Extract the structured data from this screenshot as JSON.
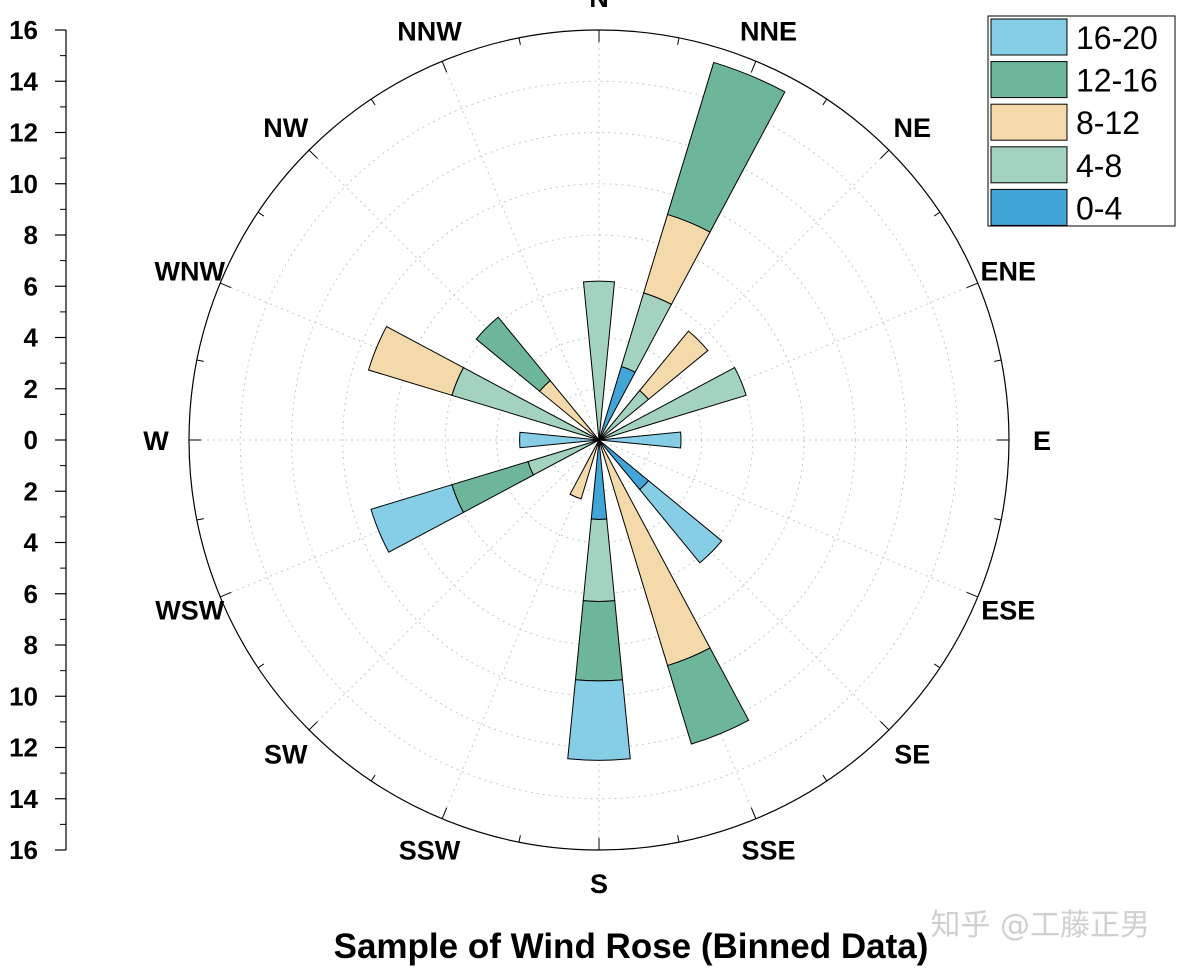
{
  "chart_data": {
    "type": "wind-rose",
    "title": "Sample of Wind Rose (Binned Data)",
    "radial_range": [
      0,
      16
    ],
    "radial_axis_ticks": [
      "16",
      "14",
      "12",
      "10",
      "8",
      "6",
      "4",
      "2",
      "0",
      "2",
      "4",
      "6",
      "8",
      "10",
      "12",
      "14",
      "16"
    ],
    "directions": [
      "N",
      "NNE",
      "NE",
      "ENE",
      "E",
      "ESE",
      "SE",
      "SSE",
      "S",
      "SSW",
      "SW",
      "WSW",
      "W",
      "WNW",
      "NW",
      "NNW"
    ],
    "bins": [
      "0-4",
      "4-8",
      "8-12",
      "12-16",
      "16-20"
    ],
    "legend_order": [
      "16-20",
      "12-16",
      "8-12",
      "4-8",
      "0-4"
    ],
    "legend_position": "top-right",
    "colors": {
      "0-4": "#42a5d7",
      "4-8": "#a3d3bf",
      "8-12": "#f4d9ab",
      "12-16": "#6db69a",
      "16-20": "#86cde6"
    },
    "grid": true,
    "cumulative_values": {
      "N": [
        0,
        6.2,
        6.2,
        6.2,
        6.2
      ],
      "NNE": [
        3.0,
        6.0,
        9.2,
        15.4,
        15.4
      ],
      "NE": [
        0,
        2.5,
        5.5,
        5.5,
        5.5
      ],
      "ENE": [
        0,
        6.0,
        6.0,
        6.0,
        6.0
      ],
      "E": [
        0,
        0,
        0,
        0,
        3.2
      ],
      "ESE": [
        0,
        0,
        0,
        0,
        0
      ],
      "SE": [
        2.5,
        2.5,
        2.5,
        2.5,
        6.2
      ],
      "SSE": [
        0,
        0,
        9.2,
        12.4,
        12.4
      ],
      "S": [
        3.1,
        6.3,
        6.3,
        9.4,
        12.5
      ],
      "SSW": [
        0,
        0,
        2.4,
        2.4,
        2.4
      ],
      "SW": [
        0,
        0,
        0,
        0,
        0
      ],
      "WSW": [
        0,
        2.9,
        2.9,
        6.0,
        9.3
      ],
      "W": [
        0,
        0,
        0,
        0,
        3.1
      ],
      "WNW": [
        0,
        6.0,
        9.4,
        9.4,
        9.4
      ],
      "NW": [
        0,
        0,
        3.0,
        6.2,
        6.2
      ],
      "NNW": [
        0,
        0,
        0,
        0,
        0
      ]
    }
  },
  "watermark": "知乎 @工藤正男"
}
